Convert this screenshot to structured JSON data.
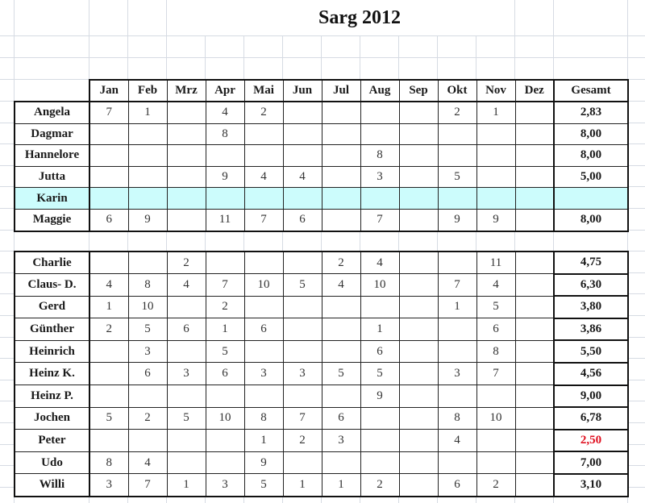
{
  "title": "Sarg 2012",
  "months": [
    "Jan",
    "Feb",
    "Mrz",
    "Apr",
    "Mai",
    "Jun",
    "Jul",
    "Aug",
    "Sep",
    "Okt",
    "Nov",
    "Dez"
  ],
  "total_label": "Gesamt",
  "colors": {
    "highlight_row": "#ccfcfc",
    "low_total": "#e01020"
  },
  "groups": [
    {
      "rows": [
        {
          "name": "Angela",
          "values": [
            "7",
            "1",
            "",
            "4",
            "2",
            "",
            "",
            "",
            "",
            "2",
            "1",
            ""
          ],
          "total": "2,83"
        },
        {
          "name": "Dagmar",
          "values": [
            "",
            "",
            "",
            "8",
            "",
            "",
            "",
            "",
            "",
            "",
            "",
            ""
          ],
          "total": "8,00"
        },
        {
          "name": "Hannelore",
          "values": [
            "",
            "",
            "",
            "",
            "",
            "",
            "",
            "8",
            "",
            "",
            "",
            ""
          ],
          "total": "8,00"
        },
        {
          "name": "Jutta",
          "values": [
            "",
            "",
            "",
            "9",
            "4",
            "4",
            "",
            "3",
            "",
            "5",
            "",
            ""
          ],
          "total": "5,00"
        },
        {
          "name": "Karin",
          "values": [
            "",
            "",
            "",
            "",
            "",
            "",
            "",
            "",
            "",
            "",
            "",
            ""
          ],
          "total": "",
          "highlight": true
        },
        {
          "name": "Maggie",
          "values": [
            "6",
            "9",
            "",
            "11",
            "7",
            "6",
            "",
            "7",
            "",
            "9",
            "9",
            ""
          ],
          "total": "8,00"
        }
      ]
    },
    {
      "rows": [
        {
          "name": "Charlie",
          "values": [
            "",
            "",
            "2",
            "",
            "",
            "",
            "2",
            "4",
            "",
            "",
            "11",
            ""
          ],
          "total": "4,75"
        },
        {
          "name": "Claus- D.",
          "values": [
            "4",
            "8",
            "4",
            "7",
            "10",
            "5",
            "4",
            "10",
            "",
            "7",
            "4",
            ""
          ],
          "total": "6,30"
        },
        {
          "name": "Gerd",
          "values": [
            "1",
            "10",
            "",
            "2",
            "",
            "",
            "",
            "",
            "",
            "1",
            "5",
            ""
          ],
          "total": "3,80"
        },
        {
          "name": "Günther",
          "values": [
            "2",
            "5",
            "6",
            "1",
            "6",
            "",
            "",
            "1",
            "",
            "",
            "6",
            ""
          ],
          "total": "3,86"
        },
        {
          "name": "Heinrich",
          "values": [
            "",
            "3",
            "",
            "5",
            "",
            "",
            "",
            "6",
            "",
            "",
            "8",
            ""
          ],
          "total": "5,50"
        },
        {
          "name": "Heinz K.",
          "values": [
            "",
            "6",
            "3",
            "6",
            "3",
            "3",
            "5",
            "5",
            "",
            "3",
            "7",
            ""
          ],
          "total": "4,56"
        },
        {
          "name": "Heinz P.",
          "values": [
            "",
            "",
            "",
            "",
            "",
            "",
            "",
            "9",
            "",
            "",
            "",
            ""
          ],
          "total": "9,00"
        },
        {
          "name": "Jochen",
          "values": [
            "5",
            "2",
            "5",
            "10",
            "8",
            "7",
            "6",
            "",
            "",
            "8",
            "10",
            ""
          ],
          "total": "6,78"
        },
        {
          "name": "Peter",
          "values": [
            "",
            "",
            "",
            "",
            "1",
            "2",
            "3",
            "",
            "",
            "4",
            "",
            ""
          ],
          "total": "2,50",
          "low": true
        },
        {
          "name": "Udo",
          "values": [
            "8",
            "4",
            "",
            "",
            "9",
            "",
            "",
            "",
            "",
            "",
            "",
            ""
          ],
          "total": "7,00"
        },
        {
          "name": "Willi",
          "values": [
            "3",
            "7",
            "1",
            "3",
            "5",
            "1",
            "1",
            "2",
            "",
            "6",
            "2",
            ""
          ],
          "total": "3,10"
        }
      ]
    }
  ]
}
